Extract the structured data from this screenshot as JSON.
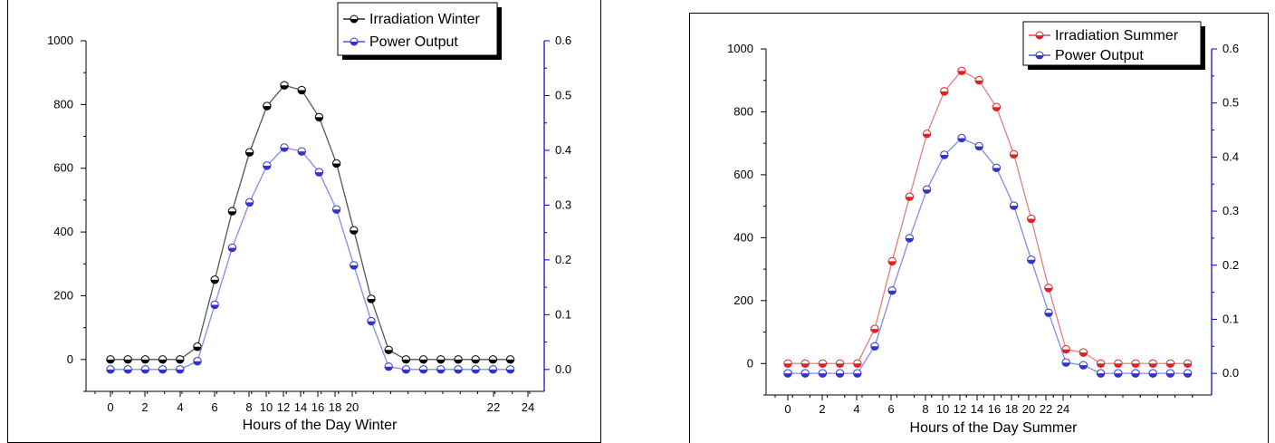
{
  "charts": [
    {
      "id": "winter",
      "chart_data": {
        "type": "line",
        "xlabel": "Hours of the Day Winter",
        "x_ticks": [
          "0",
          "2",
          "4",
          "6",
          "8",
          "10",
          "12",
          "14",
          "16",
          "18",
          "20",
          "22",
          "24"
        ],
        "y_left_ticks": [
          "0",
          "200",
          "400",
          "600",
          "800",
          "1000"
        ],
        "y_right_ticks": [
          "0.0",
          "0.1",
          "0.2",
          "0.3",
          "0.4",
          "0.5",
          "0.6"
        ],
        "ylim_left": [
          -100,
          1000
        ],
        "ylim_right": [
          -0.04,
          0.6
        ],
        "legend": "top-right",
        "series": [
          {
            "name": "Irradiation Winter",
            "axis": "left",
            "color": "#000000",
            "values": [
              0,
              0,
              0,
              0,
              0,
              40,
              250,
              465,
              650,
              795,
              860,
              845,
              760,
              615,
              405,
              190,
              30,
              0,
              0,
              0,
              0,
              0,
              0,
              0
            ]
          },
          {
            "name": "Power Output",
            "axis": "right",
            "color": "#3333cc",
            "values": [
              0,
              0,
              0,
              0,
              0,
              0.015,
              0.118,
              0.222,
              0.305,
              0.372,
              0.405,
              0.398,
              0.36,
              0.292,
              0.19,
              0.088,
              0.005,
              0,
              0,
              0,
              0,
              0,
              0,
              0
            ]
          }
        ]
      }
    },
    {
      "id": "summer",
      "chart_data": {
        "type": "line",
        "xlabel": "Hours of the Day Summer",
        "x_ticks": [
          "0",
          "2",
          "4",
          "6",
          "8",
          "10",
          "12",
          "14",
          "16",
          "18",
          "20",
          "22",
          "24"
        ],
        "y_left_ticks": [
          "0",
          "200",
          "400",
          "600",
          "800",
          "1000"
        ],
        "y_right_ticks": [
          "0.0",
          "0.1",
          "0.2",
          "0.3",
          "0.4",
          "0.5",
          "0.6"
        ],
        "ylim_left": [
          -100,
          1000
        ],
        "ylim_right": [
          -0.04,
          0.6
        ],
        "legend": "top-right",
        "series": [
          {
            "name": "Irradiation Summer",
            "axis": "left",
            "color": "#dd2222",
            "values": [
              0,
              0,
              0,
              0,
              0,
              110,
              325,
              530,
              730,
              865,
              930,
              900,
              815,
              665,
              460,
              240,
              45,
              35,
              0,
              0,
              0,
              0,
              0,
              0
            ]
          },
          {
            "name": "Power Output",
            "axis": "right",
            "color": "#3333cc",
            "values": [
              0,
              0,
              0,
              0,
              0,
              0.05,
              0.153,
              0.25,
              0.34,
              0.404,
              0.435,
              0.42,
              0.38,
              0.31,
              0.21,
              0.112,
              0.02,
              0.015,
              0,
              0,
              0,
              0,
              0,
              0
            ]
          }
        ]
      }
    }
  ]
}
